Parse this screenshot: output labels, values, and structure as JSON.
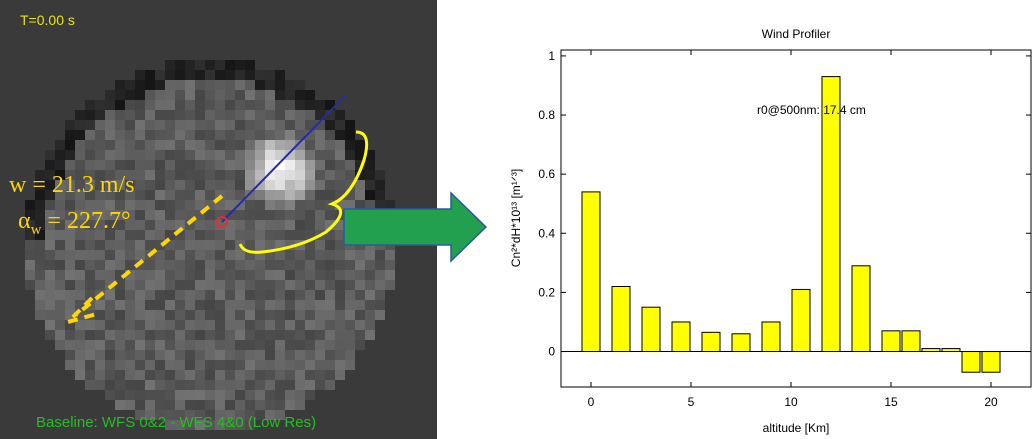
{
  "left_panel": {
    "time": "T=0.00 s",
    "wind_speed": "w = 21.3 m/s",
    "wind_angle_symbol": "α",
    "wind_angle_sub": "w",
    "wind_angle_value": " = 227.7°",
    "baseline": "Baseline: WFS 0&2 - WFS 4&0 (Low Res)"
  },
  "colors": {
    "panel_bg": "#3a3a3a",
    "highlight": "#ffd700",
    "arrow": "#22a050",
    "bar_fill": "#ffff00",
    "baseline_text": "#22c022"
  },
  "chart_data": {
    "type": "bar",
    "title": "Wind Profiler",
    "xlabel": "altitude [Km]",
    "ylabel": "Cn²*dH*10¹³ [m¹ᐟ³]",
    "annotation": "r0@500nm: 17.4 cm",
    "x": [
      0,
      1.5,
      3,
      4.5,
      6,
      7.5,
      9,
      10.5,
      12,
      13.5,
      15,
      16,
      17,
      18,
      19,
      20
    ],
    "values": [
      0.54,
      0.22,
      0.15,
      0.1,
      0.065,
      0.06,
      0.1,
      0.21,
      0.93,
      0.29,
      0.07,
      0.07,
      0.01,
      0.01,
      -0.07,
      -0.07
    ],
    "xlim": [
      -1.5,
      22
    ],
    "ylim": [
      -0.12,
      1.02
    ],
    "xticks": [
      0,
      5,
      10,
      15,
      20
    ],
    "yticks": [
      0,
      0.2,
      0.4,
      0.6,
      0.8,
      1
    ],
    "ytick_labels": [
      "0",
      "0.2",
      "0.4",
      "0.6",
      "0.8",
      "1"
    ]
  }
}
